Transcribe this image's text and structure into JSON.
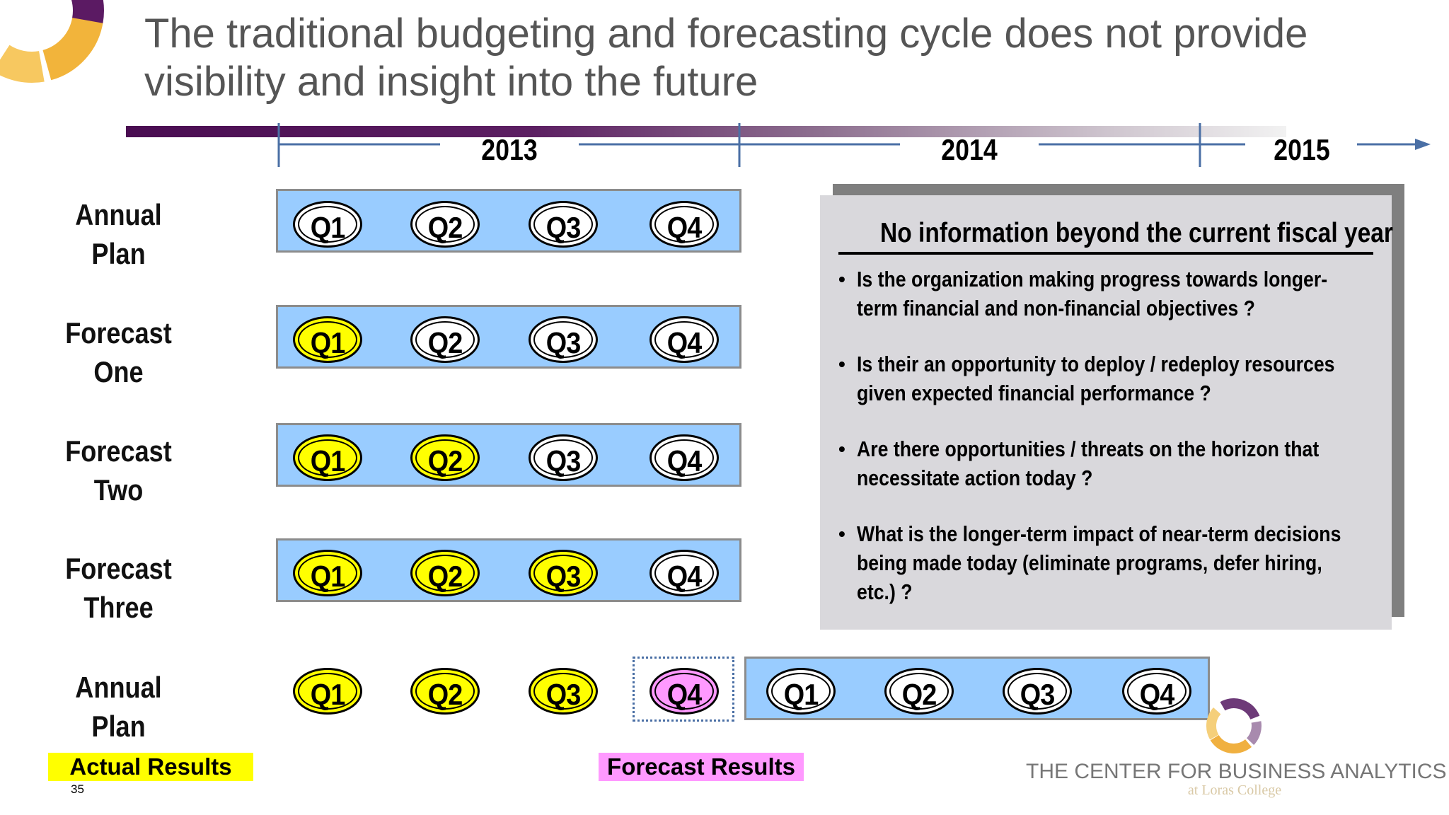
{
  "title": {
    "line1": "The traditional budgeting and forecasting cycle does not provide",
    "line2": "visibility and insight into the future"
  },
  "timeline": {
    "years": [
      "2013",
      "2014",
      "2015"
    ]
  },
  "rows": [
    {
      "label_line1": "Annual",
      "label_line2": "Plan",
      "quarters": [
        "Q1",
        "Q2",
        "Q3",
        "Q4"
      ],
      "status": [
        "open",
        "open",
        "open",
        "open"
      ]
    },
    {
      "label_line1": "Forecast",
      "label_line2": "One",
      "quarters": [
        "Q1",
        "Q2",
        "Q3",
        "Q4"
      ],
      "status": [
        "actual",
        "open",
        "open",
        "open"
      ]
    },
    {
      "label_line1": "Forecast",
      "label_line2": "Two",
      "quarters": [
        "Q1",
        "Q2",
        "Q3",
        "Q4"
      ],
      "status": [
        "actual",
        "actual",
        "open",
        "open"
      ]
    },
    {
      "label_line1": "Forecast",
      "label_line2": "Three",
      "quarters": [
        "Q1",
        "Q2",
        "Q3",
        "Q4"
      ],
      "status": [
        "actual",
        "actual",
        "actual",
        "open"
      ]
    },
    {
      "label_line1": "Annual",
      "label_line2": "Plan",
      "quarters": [
        "Q1",
        "Q2",
        "Q3",
        "Q4"
      ],
      "status": [
        "actual",
        "actual",
        "actual",
        "forecast"
      ],
      "next_year_quarters": [
        "Q1",
        "Q2",
        "Q3",
        "Q4"
      ]
    }
  ],
  "info_box": {
    "heading": "No information beyond the current fiscal year",
    "bullets": [
      "Is the organization making progress towards longer-term financial and non-financial objectives ?",
      "Is their an opportunity to deploy / redeploy resources given expected financial performance ?",
      "Are there opportunities / threats on the horizon that necessitate action today ?",
      "What is the longer-term impact of near-term decisions being made today (eliminate programs, defer hiring, etc.) ?"
    ]
  },
  "legend": {
    "actual": "Actual Results",
    "forecast": "Forecast Results"
  },
  "slide_number": "35",
  "brand": {
    "name": "THE CENTER FOR BUSINESS ANALYTICS",
    "sub": "at Loras College"
  },
  "colors": {
    "band": "#99ccff",
    "actual": "#ffff00",
    "forecast": "#ff99ff",
    "timeline_start": "#4a0d52",
    "title": "#555555"
  }
}
